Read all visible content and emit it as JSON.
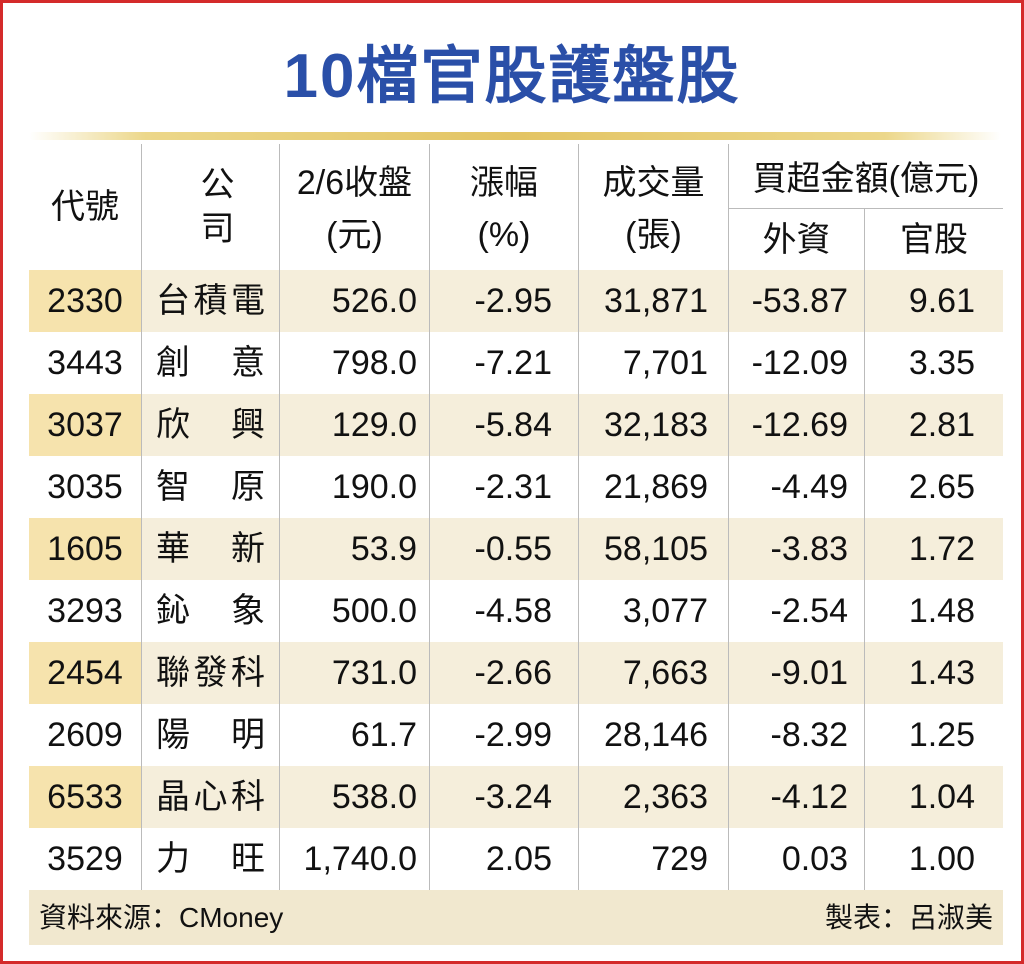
{
  "title": "10檔官股護盤股",
  "columns": {
    "code": "代號",
    "company": "公　司",
    "close_line1": "2/6收盤",
    "close_line2": "(元)",
    "change_line1": "漲幅",
    "change_line2": "(%)",
    "volume_line1": "成交量",
    "volume_line2": "(張)",
    "net_buy": "買超金額(億元)",
    "foreign": "外資",
    "government": "官股"
  },
  "rows": [
    {
      "code": "2330",
      "company": "台積電",
      "close": "526.0",
      "change": "-2.95",
      "volume": "31,871",
      "foreign": "-53.87",
      "gov": "9.61"
    },
    {
      "code": "3443",
      "company": "創意",
      "close": "798.0",
      "change": "-7.21",
      "volume": "7,701",
      "foreign": "-12.09",
      "gov": "3.35"
    },
    {
      "code": "3037",
      "company": "欣興",
      "close": "129.0",
      "change": "-5.84",
      "volume": "32,183",
      "foreign": "-12.69",
      "gov": "2.81"
    },
    {
      "code": "3035",
      "company": "智原",
      "close": "190.0",
      "change": "-2.31",
      "volume": "21,869",
      "foreign": "-4.49",
      "gov": "2.65"
    },
    {
      "code": "1605",
      "company": "華新",
      "close": "53.9",
      "change": "-0.55",
      "volume": "58,105",
      "foreign": "-3.83",
      "gov": "1.72"
    },
    {
      "code": "3293",
      "company": "鈊象",
      "close": "500.0",
      "change": "-4.58",
      "volume": "3,077",
      "foreign": "-2.54",
      "gov": "1.48"
    },
    {
      "code": "2454",
      "company": "聯發科",
      "close": "731.0",
      "change": "-2.66",
      "volume": "7,663",
      "foreign": "-9.01",
      "gov": "1.43"
    },
    {
      "code": "2609",
      "company": "陽明",
      "close": "61.7",
      "change": "-2.99",
      "volume": "28,146",
      "foreign": "-8.32",
      "gov": "1.25"
    },
    {
      "code": "6533",
      "company": "晶心科",
      "close": "538.0",
      "change": "-3.24",
      "volume": "2,363",
      "foreign": "-4.12",
      "gov": "1.04"
    },
    {
      "code": "3529",
      "company": "力旺",
      "close": "1,740.0",
      "change": "2.05",
      "volume": "729",
      "foreign": "0.03",
      "gov": "1.00"
    }
  ],
  "footer": {
    "source": "資料來源：CMoney",
    "maker": "製表：呂淑美"
  },
  "colors": {
    "title": "#2a4fa8",
    "border": "#d42a2a",
    "row_shade": "#f5eedb",
    "code_shade": "#f6e3ad",
    "footer_bg": "#f1e8cf"
  }
}
